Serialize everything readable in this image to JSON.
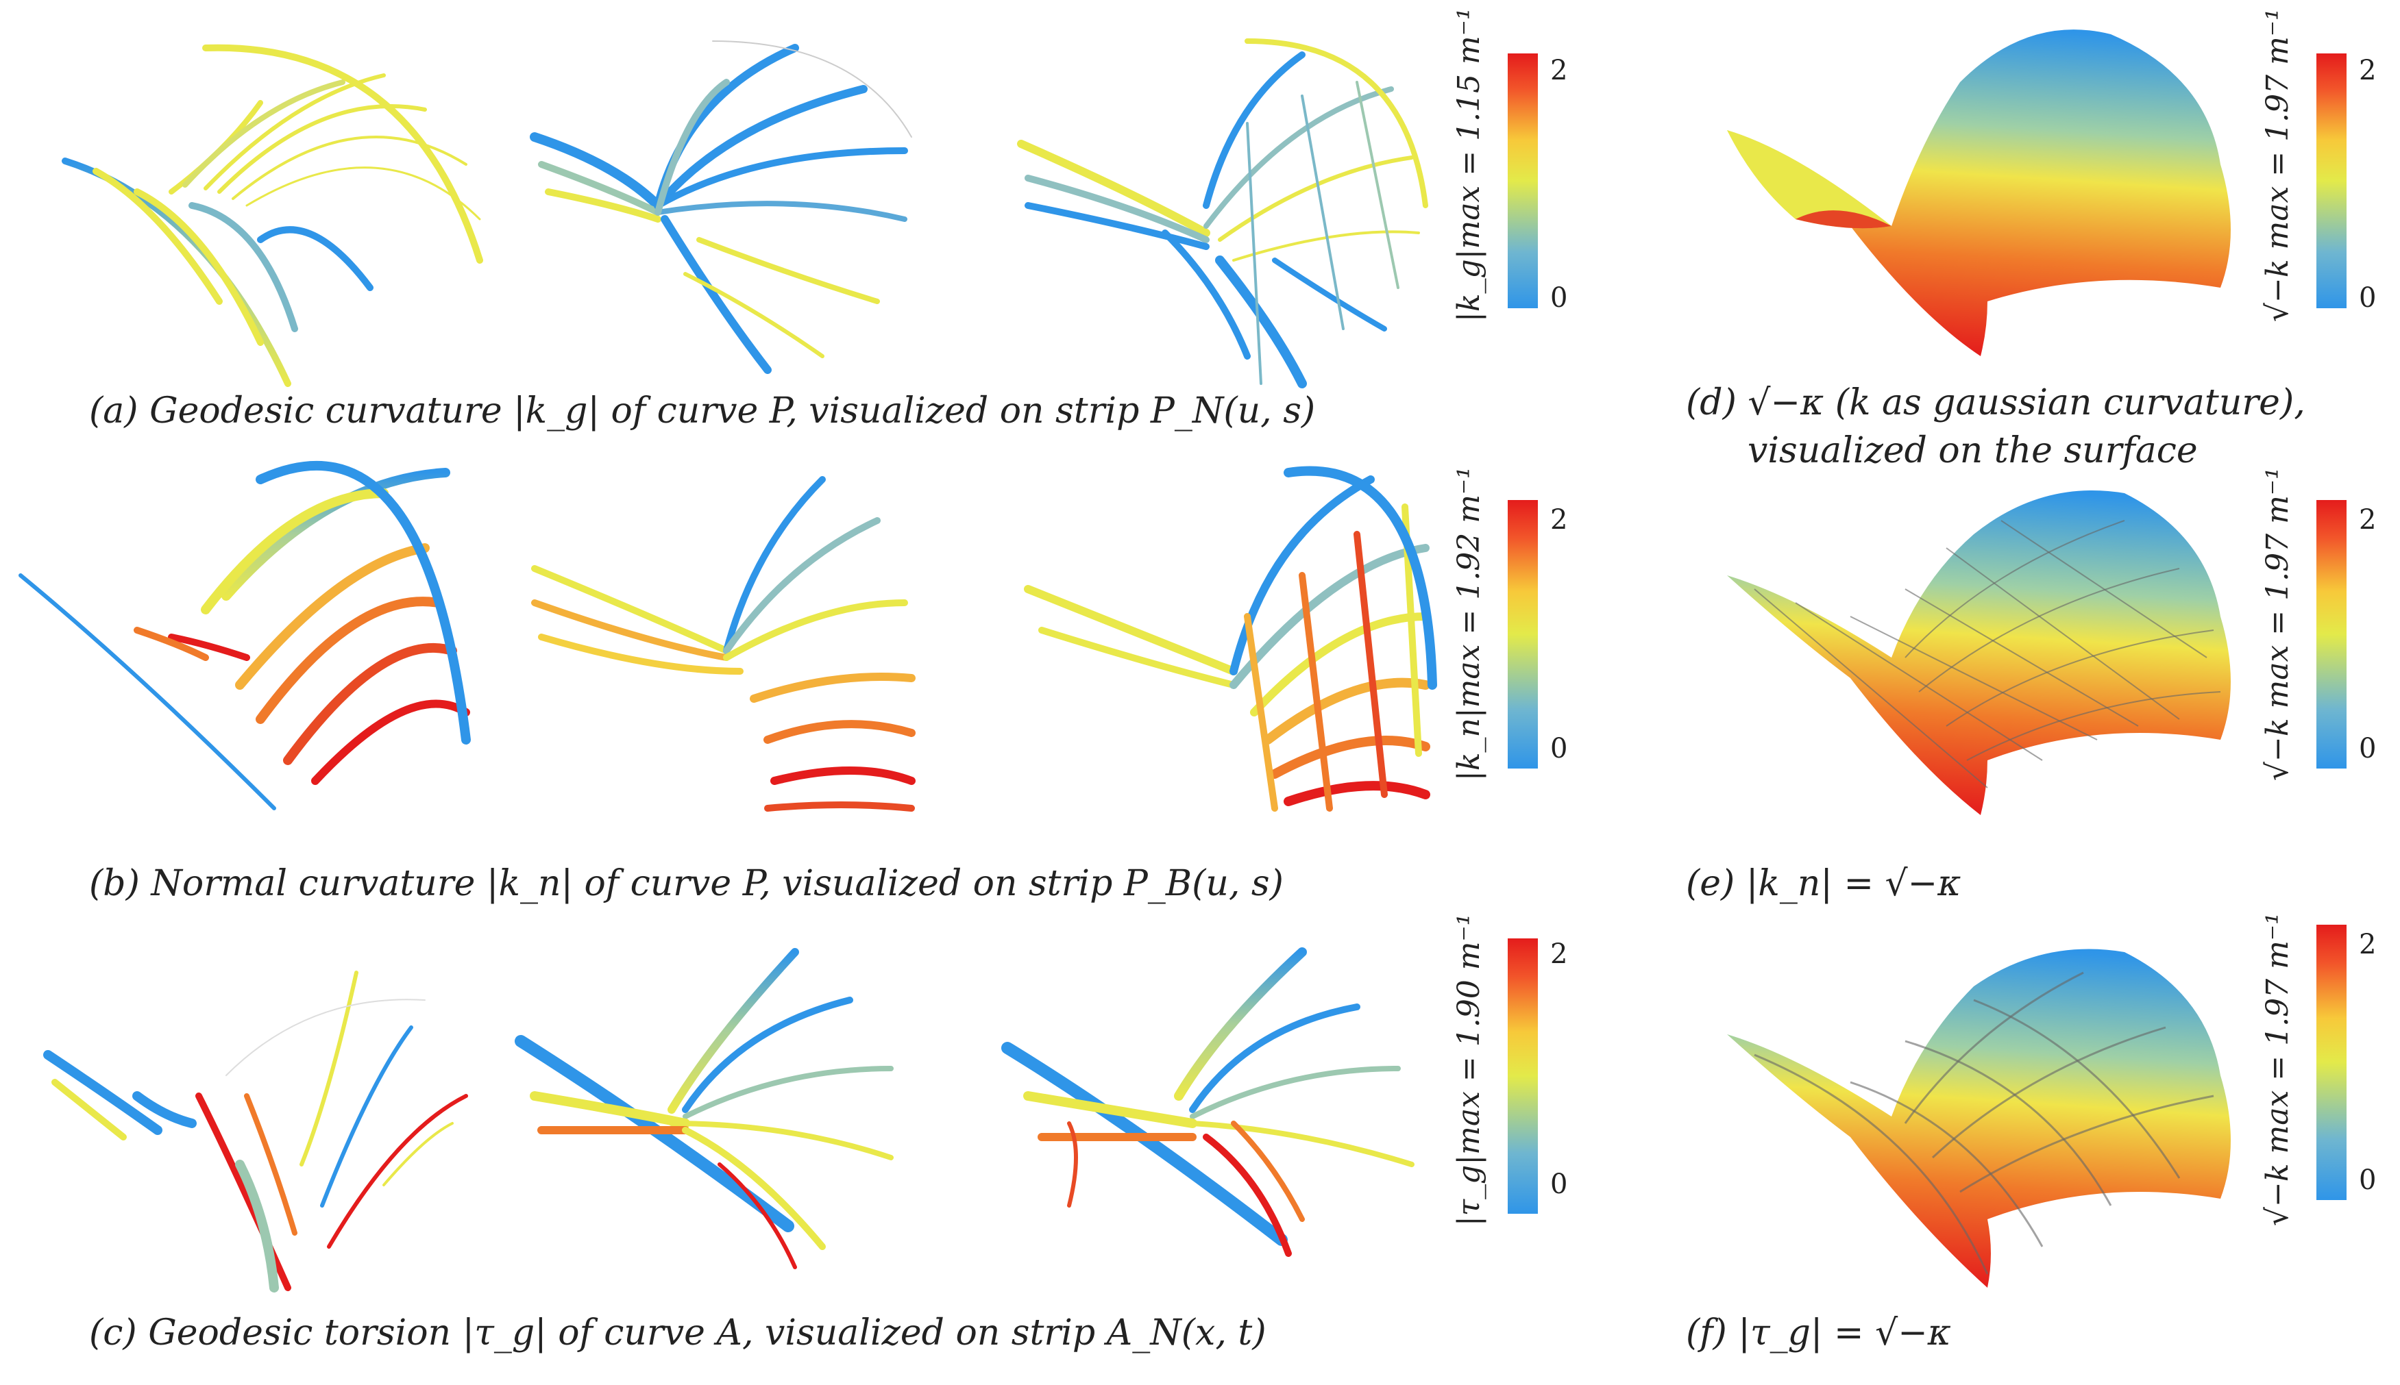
{
  "captions": {
    "a": "(a)   Geodesic curvature |k_g| of curve P, visualized on strip P_N(u, s)",
    "b": "(b)   Normal curvature |k_n| of curve P, visualized on strip P_B(u, s)",
    "c": "(c)   Geodesic torsion |τ_g| of curve A, visualized on strip A_N(x, t)",
    "d_line1": "(d)   √−κ (k as gaussian curvature),",
    "d_line2": "visualized on the surface",
    "e": "(e)        |k_n| = √−κ",
    "f": "(f)        |τ_g| = √−κ"
  },
  "colorbars": [
    {
      "id": "a",
      "label": "|k_g|max = 1.15 m⁻¹",
      "tick_top": "2",
      "tick_bottom": "0"
    },
    {
      "id": "b",
      "label": "|k_n|max = 1.92 m⁻¹",
      "tick_top": "2",
      "tick_bottom": "0"
    },
    {
      "id": "c",
      "label": "|τ_g|max = 1.90 m⁻¹",
      "tick_top": "2",
      "tick_bottom": "0"
    },
    {
      "id": "d",
      "label": "√−k max = 1.97 m⁻¹",
      "tick_top": "2",
      "tick_bottom": "0"
    },
    {
      "id": "e",
      "label": "√−k max = 1.97 m⁻¹",
      "tick_top": "2",
      "tick_bottom": "0"
    },
    {
      "id": "f",
      "label": "√−k max = 1.97 m⁻¹",
      "tick_top": "2",
      "tick_bottom": "0"
    }
  ],
  "colors": {
    "low": "#2f95e8",
    "mid": "#e3ea4a",
    "high": "#e41c1c"
  }
}
